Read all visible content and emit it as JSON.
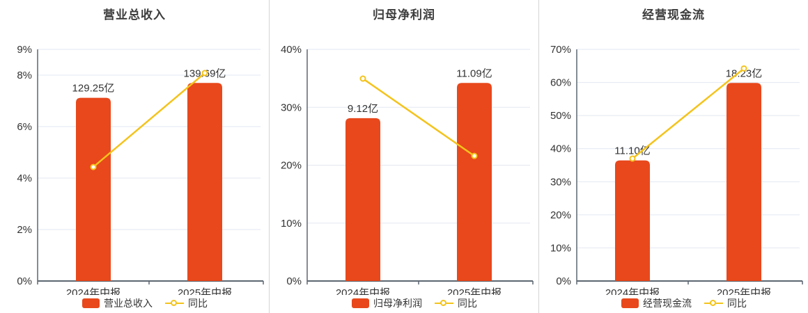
{
  "colors": {
    "bar": "#e8481c",
    "line": "#f4c31b",
    "marker_fill": "#ffffff",
    "grid": "#e2e7f1",
    "axis": "#5c6670",
    "tick_text": "#333333",
    "value_text": "#333333",
    "category_text": "#333333",
    "title_text": "#3c3c3c",
    "divider": "#d5d5d5",
    "background": "#ffffff"
  },
  "x_categories": [
    "2024年中报",
    "2025年中报"
  ],
  "chart_data": [
    {
      "type": "bar",
      "title": "营业总收入",
      "bar_series_name": "营业总收入",
      "line_series_name": "同比",
      "categories": [
        "2024年中报",
        "2025年中报"
      ],
      "bar_values_yi": [
        129.25,
        139.69
      ],
      "bar_value_labels": [
        "129.25亿",
        "139.69亿"
      ],
      "line_yoy_percent": [
        4.43,
        8.08
      ],
      "y_axis": {
        "max": 9,
        "tick_values": [
          0,
          2,
          4,
          6,
          8,
          9
        ],
        "tick_labels": [
          "0%",
          "2%",
          "4%",
          "6%",
          "8%",
          "9%"
        ]
      },
      "legend": [
        "营业总收入",
        "同比"
      ],
      "legend_position": "bottom",
      "grid": true
    },
    {
      "type": "bar",
      "title": "归母净利润",
      "bar_series_name": "归母净利润",
      "line_series_name": "同比",
      "categories": [
        "2024年中报",
        "2025年中报"
      ],
      "bar_values_yi": [
        9.12,
        11.09
      ],
      "bar_value_labels": [
        "9.12亿",
        "11.09亿"
      ],
      "line_yoy_percent": [
        34.95,
        21.6
      ],
      "y_axis": {
        "max": 40,
        "tick_values": [
          0,
          10,
          20,
          30,
          40
        ],
        "tick_labels": [
          "0%",
          "10%",
          "20%",
          "30%",
          "40%"
        ]
      },
      "legend": [
        "归母净利润",
        "同比"
      ],
      "legend_position": "bottom",
      "grid": true
    },
    {
      "type": "bar",
      "title": "经营现金流",
      "bar_series_name": "经营现金流",
      "line_series_name": "同比",
      "categories": [
        "2024年中报",
        "2025年中报"
      ],
      "bar_values_yi": [
        11.1,
        18.23
      ],
      "bar_value_labels": [
        "11.10亿",
        "18.23亿"
      ],
      "line_yoy_percent": [
        37.0,
        64.23
      ],
      "y_axis": {
        "max": 70,
        "tick_values": [
          0,
          10,
          20,
          30,
          40,
          50,
          60,
          70
        ],
        "tick_labels": [
          "0%",
          "10%",
          "20%",
          "30%",
          "40%",
          "50%",
          "60%",
          "70%"
        ]
      },
      "legend": [
        "经营现金流",
        "同比"
      ],
      "legend_position": "bottom",
      "grid": true
    }
  ]
}
